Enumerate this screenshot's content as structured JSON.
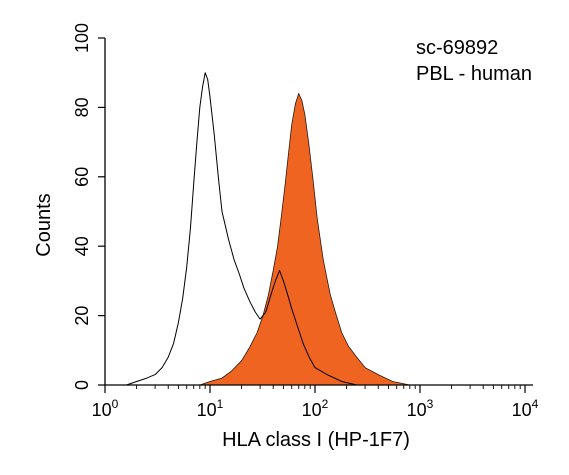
{
  "chart_data": {
    "type": "area",
    "title": "",
    "annotation_lines": [
      "sc-69892",
      "PBL - human"
    ],
    "xlabel": "HLA class I (HP-1F7)",
    "ylabel": "Counts",
    "x_scale": "log",
    "xlim": [
      1,
      10000
    ],
    "ylim": [
      0,
      100
    ],
    "x_ticks": [
      {
        "base": "10",
        "exp": "0"
      },
      {
        "base": "10",
        "exp": "1"
      },
      {
        "base": "10",
        "exp": "2"
      },
      {
        "base": "10",
        "exp": "3"
      },
      {
        "base": "10",
        "exp": "4"
      }
    ],
    "x_tick_values": [
      1,
      10,
      100,
      1000,
      10000
    ],
    "y_ticks": [
      "0",
      "20",
      "40",
      "60",
      "80",
      "100"
    ],
    "y_tick_values": [
      0,
      20,
      40,
      60,
      80,
      100
    ],
    "grid": false,
    "legend": "none",
    "series": [
      {
        "style": "outline",
        "color": "#000000",
        "points": [
          [
            1.0,
            0
          ],
          [
            1.6,
            0
          ],
          [
            2.0,
            1
          ],
          [
            2.5,
            2
          ],
          [
            3.0,
            3
          ],
          [
            3.5,
            5
          ],
          [
            4.0,
            8
          ],
          [
            4.5,
            12
          ],
          [
            5.0,
            18
          ],
          [
            5.5,
            25
          ],
          [
            6.0,
            34
          ],
          [
            6.5,
            45
          ],
          [
            7.0,
            58
          ],
          [
            7.5,
            70
          ],
          [
            8.0,
            80
          ],
          [
            8.5,
            86
          ],
          [
            9.0,
            90
          ],
          [
            9.5,
            88
          ],
          [
            10.0,
            83
          ],
          [
            11.0,
            72
          ],
          [
            12.0,
            60
          ],
          [
            13.0,
            50
          ],
          [
            15.0,
            42
          ],
          [
            17.0,
            36
          ],
          [
            19.0,
            32
          ],
          [
            21.0,
            28
          ],
          [
            24.0,
            24
          ],
          [
            27.0,
            21
          ],
          [
            30.0,
            19
          ],
          [
            34.0,
            21
          ],
          [
            38.0,
            26
          ],
          [
            42.0,
            30
          ],
          [
            46.0,
            33
          ],
          [
            50.0,
            30
          ],
          [
            55.0,
            26
          ],
          [
            60.0,
            22
          ],
          [
            68.0,
            17
          ],
          [
            77.0,
            12
          ],
          [
            88.0,
            8
          ],
          [
            100.0,
            5
          ],
          [
            130.0,
            3
          ],
          [
            180.0,
            1
          ],
          [
            250.0,
            0
          ],
          [
            400.0,
            0
          ]
        ]
      },
      {
        "style": "filled",
        "color": "#f06422",
        "points": [
          [
            8.0,
            0
          ],
          [
            10.0,
            1
          ],
          [
            13.0,
            2
          ],
          [
            16.0,
            4
          ],
          [
            20.0,
            7
          ],
          [
            24.0,
            11
          ],
          [
            28.0,
            15
          ],
          [
            32.0,
            20
          ],
          [
            36.0,
            26
          ],
          [
            40.0,
            33
          ],
          [
            44.0,
            40
          ],
          [
            48.0,
            49
          ],
          [
            52.0,
            58
          ],
          [
            56.0,
            67
          ],
          [
            60.0,
            75
          ],
          [
            65.0,
            81
          ],
          [
            70.0,
            84
          ],
          [
            75.0,
            82
          ],
          [
            80.0,
            78
          ],
          [
            87.0,
            70
          ],
          [
            95.0,
            60
          ],
          [
            105.0,
            48
          ],
          [
            120.0,
            36
          ],
          [
            140.0,
            26
          ],
          [
            160.0,
            20
          ],
          [
            180.0,
            15
          ],
          [
            210.0,
            11
          ],
          [
            250.0,
            8
          ],
          [
            300.0,
            5
          ],
          [
            400.0,
            3
          ],
          [
            550.0,
            1
          ],
          [
            800.0,
            0
          ],
          [
            1200.0,
            0
          ]
        ]
      }
    ]
  }
}
